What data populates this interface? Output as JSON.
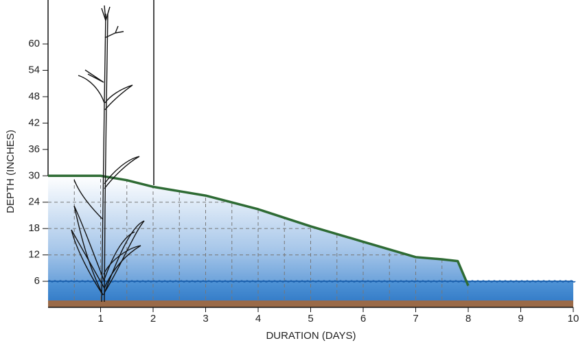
{
  "chart_data": {
    "type": "area",
    "xlabel": "DURATION (DAYS)",
    "ylabel": "DEPTH  (INCHES)",
    "xlim": [
      0,
      10
    ],
    "ylim": [
      0,
      70
    ],
    "xticks": [
      1,
      2,
      3,
      4,
      5,
      6,
      7,
      8,
      9,
      10
    ],
    "yticks": [
      6,
      12,
      18,
      24,
      30,
      36,
      42,
      48,
      54,
      60
    ],
    "grid": true,
    "series": [
      {
        "color": "#2e6b34",
        "x": [
          0,
          1,
          1.5,
          2,
          3,
          4,
          5,
          6,
          7,
          7.5,
          7.8,
          8
        ],
        "values": [
          30,
          30,
          29,
          27.5,
          25.5,
          22.4,
          18.5,
          15,
          11.5,
          11,
          10.6,
          5
        ]
      },
      {
        "color": "#1f64b0",
        "x": [
          0,
          10
        ],
        "values": [
          6,
          6
        ]
      }
    ]
  }
}
